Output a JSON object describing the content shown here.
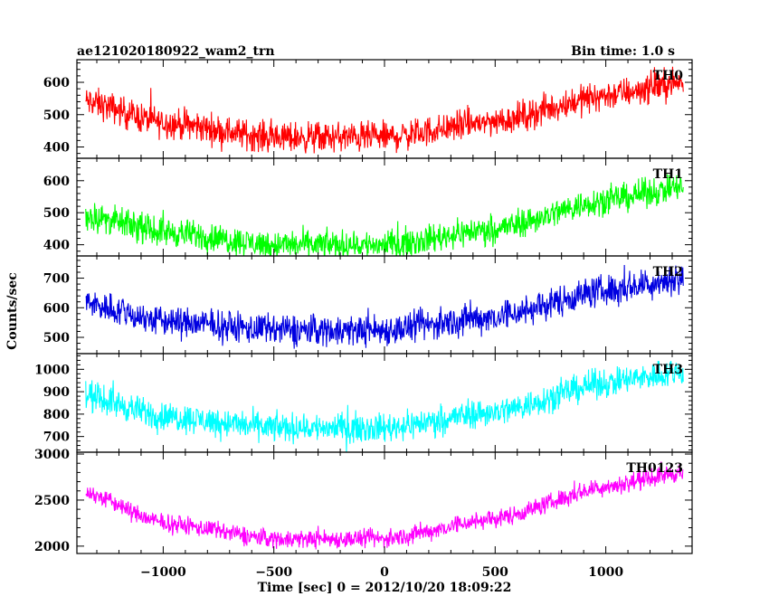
{
  "chart_data": {
    "type": "line",
    "title_left": "ae121020180922_wam2_trn",
    "title_right": "Bin time: 1.0 s",
    "xlabel": "Time [sec] 0 = 2012/10/20 18:09:22",
    "ylabel": "Counts/sec",
    "xlim": [
      -1390,
      1390
    ],
    "x_ticks": [
      {
        "value": -1000,
        "label": "−1000"
      },
      {
        "value": -500,
        "label": "−500"
      },
      {
        "value": 0,
        "label": "0"
      },
      {
        "value": 500,
        "label": "500"
      },
      {
        "value": 1000,
        "label": "1000"
      }
    ],
    "x_range": [
      -1350,
      1350
    ],
    "panels": [
      {
        "name": "TH0",
        "color": "#ff0000",
        "ylim": [
          365,
          670
        ],
        "y_ticks": [
          400,
          500,
          600
        ],
        "trend_x": [
          -1350,
          -1000,
          -500,
          0,
          500,
          1000,
          1350
        ],
        "trend_y": [
          540,
          475,
          430,
          430,
          480,
          560,
          600
        ],
        "noise": 40
      },
      {
        "name": "TH1",
        "color": "#00ff00",
        "ylim": [
          365,
          670
        ],
        "y_ticks": [
          400,
          500,
          600
        ],
        "trend_x": [
          -1350,
          -1000,
          -500,
          0,
          500,
          1000,
          1350
        ],
        "trend_y": [
          490,
          440,
          400,
          400,
          450,
          540,
          580
        ],
        "noise": 38
      },
      {
        "name": "TH2",
        "color": "#0000e0",
        "ylim": [
          445,
          775
        ],
        "y_ticks": [
          500,
          600,
          700
        ],
        "trend_x": [
          -1350,
          -1000,
          -500,
          0,
          500,
          1000,
          1350
        ],
        "trend_y": [
          615,
          555,
          525,
          525,
          570,
          660,
          700
        ],
        "noise": 45
      },
      {
        "name": "TH3",
        "color": "#00ffff",
        "ylim": [
          630,
          1070
        ],
        "y_ticks": [
          700,
          800,
          900,
          1000
        ],
        "trend_x": [
          -1350,
          -1000,
          -500,
          0,
          500,
          1000,
          1350
        ],
        "trend_y": [
          880,
          790,
          740,
          740,
          810,
          940,
          990
        ],
        "noise": 55
      },
      {
        "name": "TH0123",
        "color": "#ff00ff",
        "ylim": [
          1920,
          3020
        ],
        "y_ticks": [
          2000,
          2500,
          3000
        ],
        "trend_x": [
          -1350,
          -1000,
          -500,
          0,
          500,
          1000,
          1350
        ],
        "trend_y": [
          2580,
          2250,
          2080,
          2080,
          2300,
          2650,
          2800
        ],
        "noise": 85
      }
    ]
  }
}
